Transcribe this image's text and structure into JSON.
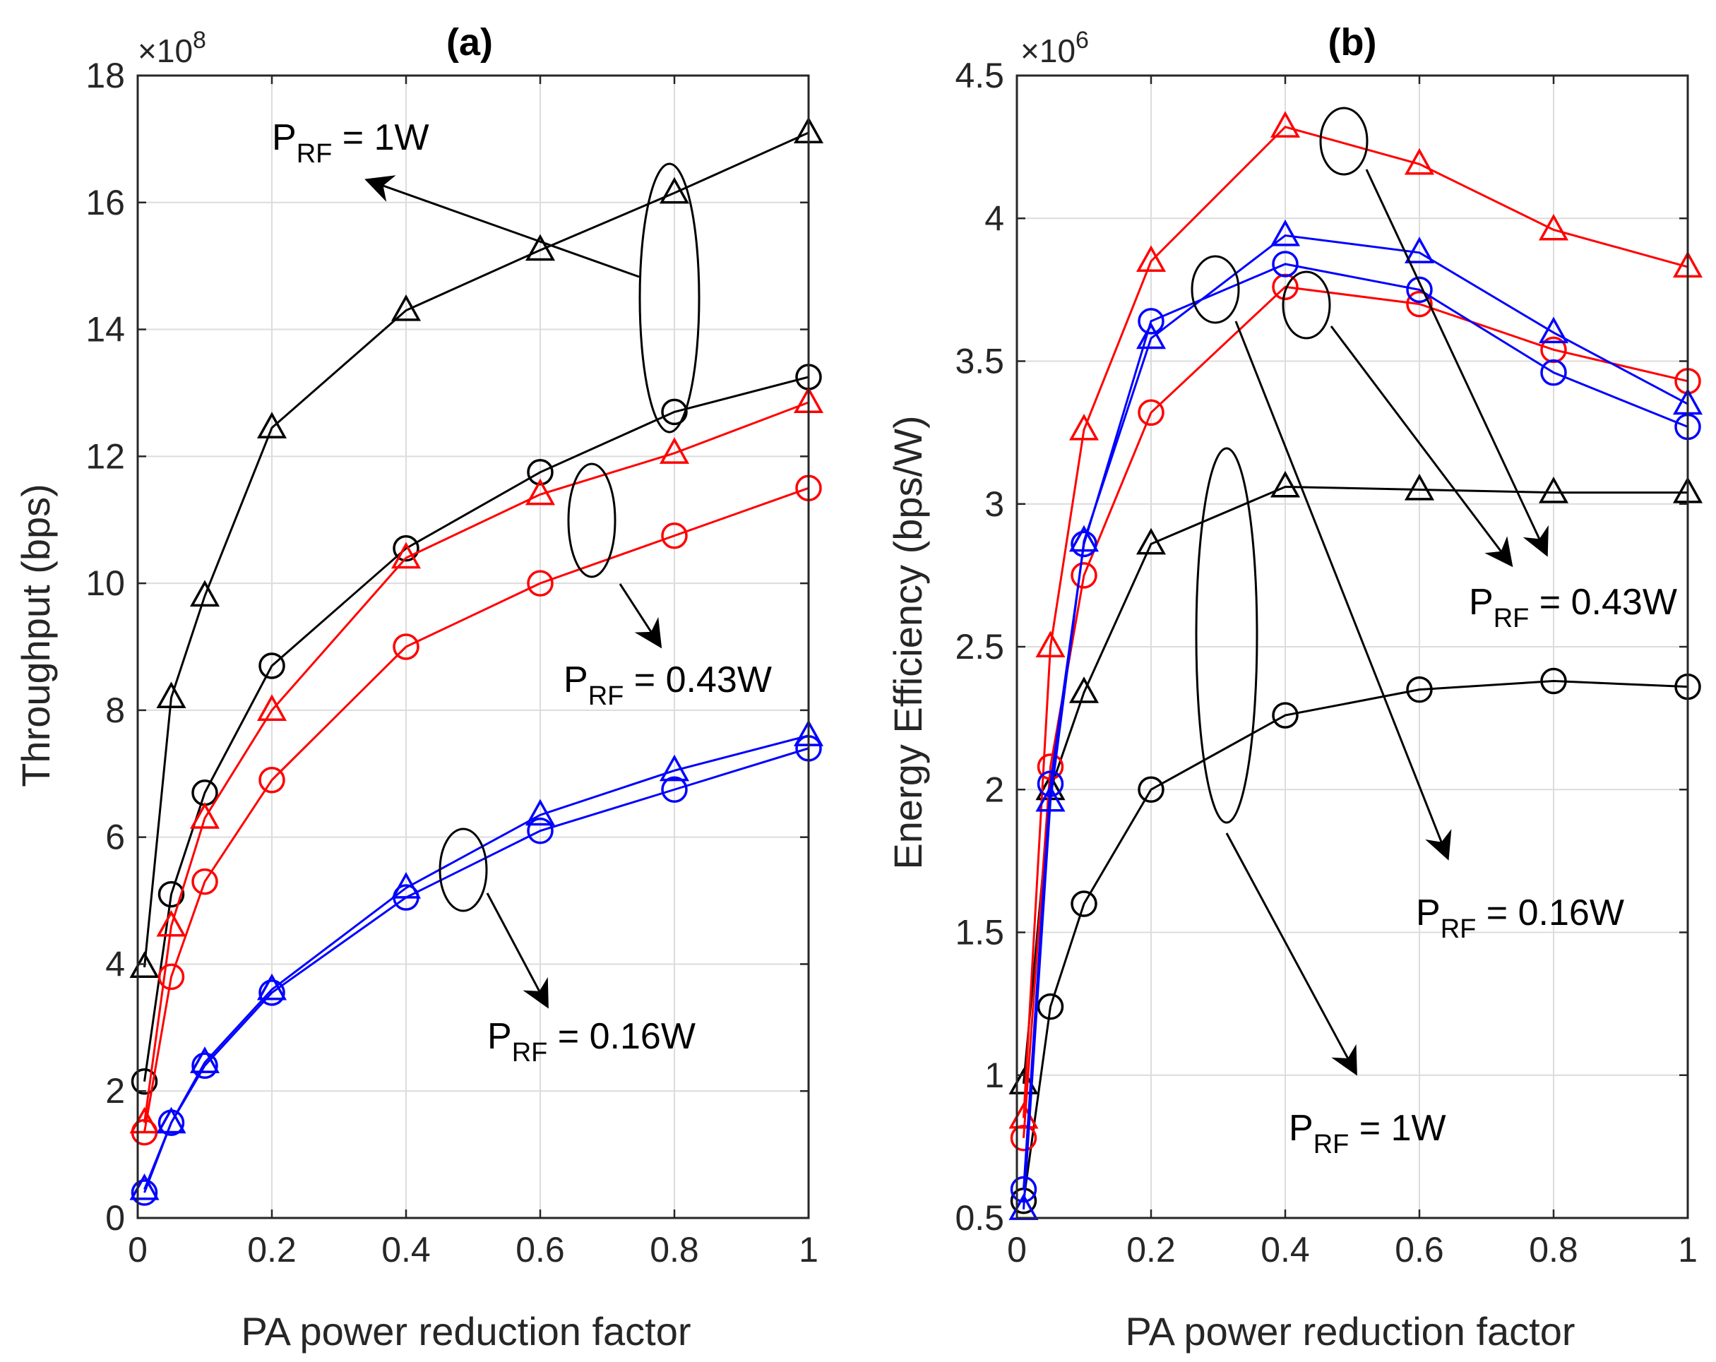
{
  "colors": {
    "black_series": "#000000",
    "red_series": "#ff0000",
    "blue_series": "#0000ff",
    "grid": "#dcdcdc",
    "axis": "#262626"
  },
  "chart_data": [
    {
      "type": "line",
      "title": "(a)",
      "xlabel": "PA power reduction factor",
      "ylabel": "Throughput (bps)",
      "y_exponent": {
        "base": "×10",
        "power": "8"
      },
      "xlim": [
        0,
        1
      ],
      "ylim": [
        0,
        18
      ],
      "xticks": [
        "0",
        "0.2",
        "0.4",
        "0.6",
        "0.8",
        "1"
      ],
      "yticks": [
        "0",
        "2",
        "4",
        "6",
        "8",
        "10",
        "12",
        "14",
        "16",
        "18"
      ],
      "grid": true,
      "x": [
        0.01,
        0.05,
        0.1,
        0.2,
        0.4,
        0.6,
        0.8,
        1.0
      ],
      "series": [
        {
          "color": "#000000",
          "marker": "triangle",
          "values": [
            3.95,
            8.2,
            9.8,
            12.45,
            14.3,
            15.25,
            16.15,
            17.1
          ]
        },
        {
          "color": "#000000",
          "marker": "circle",
          "values": [
            2.15,
            5.1,
            6.7,
            8.7,
            10.55,
            11.75,
            12.7,
            13.25
          ]
        },
        {
          "color": "#ff0000",
          "marker": "triangle",
          "values": [
            1.5,
            4.6,
            6.3,
            8.0,
            10.4,
            11.4,
            12.05,
            12.85
          ]
        },
        {
          "color": "#ff0000",
          "marker": "circle",
          "values": [
            1.35,
            3.8,
            5.3,
            6.9,
            9.0,
            10.0,
            10.75,
            11.5
          ]
        },
        {
          "color": "#0000ff",
          "marker": "triangle",
          "values": [
            0.45,
            1.5,
            2.45,
            3.6,
            5.2,
            6.35,
            7.05,
            7.6
          ]
        },
        {
          "color": "#0000ff",
          "marker": "circle",
          "values": [
            0.4,
            1.5,
            2.4,
            3.55,
            5.05,
            6.1,
            6.75,
            7.4
          ]
        }
      ],
      "annotations": [
        {
          "label": "P",
          "sub": "RF",
          "rest": " = 1W"
        },
        {
          "label": "P",
          "sub": "RF",
          "rest": " = 0.43W"
        },
        {
          "label": "P",
          "sub": "RF",
          "rest": " = 0.16W"
        }
      ]
    },
    {
      "type": "line",
      "title": "(b)",
      "xlabel": "PA power reduction factor",
      "ylabel": "Energy Efficiency (bps/W)",
      "y_exponent": {
        "base": "×10",
        "power": "6"
      },
      "xlim": [
        0,
        1
      ],
      "ylim": [
        0.5,
        4.5
      ],
      "xticks": [
        "0",
        "0.2",
        "0.4",
        "0.6",
        "0.8",
        "1"
      ],
      "yticks": [
        "0.5",
        "1",
        "1.5",
        "2",
        "2.5",
        "3",
        "3.5",
        "4",
        "4.5"
      ],
      "grid": true,
      "x": [
        0.01,
        0.05,
        0.1,
        0.2,
        0.4,
        0.6,
        0.8,
        1.0
      ],
      "series": [
        {
          "color": "#000000",
          "marker": "triangle",
          "values": [
            0.97,
            2.0,
            2.34,
            2.86,
            3.06,
            3.05,
            3.04,
            3.04
          ]
        },
        {
          "color": "#000000",
          "marker": "circle",
          "values": [
            0.56,
            1.24,
            1.6,
            2.0,
            2.26,
            2.35,
            2.38,
            2.36
          ]
        },
        {
          "color": "#ff0000",
          "marker": "triangle",
          "values": [
            0.85,
            2.5,
            3.26,
            3.85,
            4.32,
            4.19,
            3.96,
            3.83
          ]
        },
        {
          "color": "#ff0000",
          "marker": "circle",
          "values": [
            0.78,
            2.08,
            2.75,
            3.32,
            3.76,
            3.7,
            3.54,
            3.43
          ]
        },
        {
          "color": "#0000ff",
          "marker": "triangle",
          "values": [
            0.53,
            1.96,
            2.87,
            3.58,
            3.94,
            3.88,
            3.6,
            3.35
          ]
        },
        {
          "color": "#0000ff",
          "marker": "circle",
          "values": [
            0.6,
            2.02,
            2.86,
            3.64,
            3.84,
            3.75,
            3.46,
            3.27
          ]
        }
      ],
      "annotations": [
        {
          "label": "P",
          "sub": "RF",
          "rest": " = 0.43W"
        },
        {
          "label": "P",
          "sub": "RF",
          "rest": " = 0.16W"
        },
        {
          "label": "P",
          "sub": "RF",
          "rest": " = 1W"
        }
      ]
    }
  ]
}
